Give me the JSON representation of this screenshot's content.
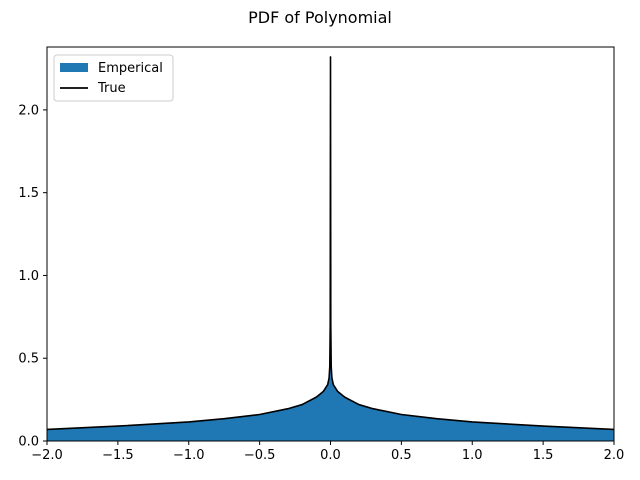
{
  "chart_data": {
    "type": "area",
    "title": "PDF of Polynomial",
    "xlabel": "",
    "ylabel": "",
    "xlim": [
      -2.0,
      2.0
    ],
    "ylim": [
      0.0,
      2.38
    ],
    "x_ticks": [
      "−2.0",
      "−1.5",
      "−1.0",
      "−0.5",
      "0.0",
      "0.5",
      "1.0",
      "1.5",
      "2.0"
    ],
    "x_tick_values": [
      -2.0,
      -1.5,
      -1.0,
      -0.5,
      0.0,
      0.5,
      1.0,
      1.5,
      2.0
    ],
    "y_ticks": [
      "0.0",
      "0.5",
      "1.0",
      "1.5",
      "2.0"
    ],
    "y_tick_values": [
      0.0,
      0.5,
      1.0,
      1.5,
      2.0
    ],
    "grid": false,
    "legend": {
      "placement": "top-left",
      "entries": [
        "Emperical",
        "True"
      ]
    },
    "series": [
      {
        "name": "Emperical",
        "kind": "filled-area",
        "color": "#1f77b4",
        "x": [
          -2.0,
          -1.5,
          -1.0,
          -0.75,
          -0.5,
          -0.3,
          -0.2,
          -0.1,
          -0.05,
          -0.02,
          -0.01,
          0.0,
          0.01,
          0.02,
          0.05,
          0.1,
          0.2,
          0.3,
          0.5,
          0.75,
          1.0,
          1.5,
          2.0
        ],
        "y": [
          0.07,
          0.09,
          0.115,
          0.135,
          0.16,
          0.195,
          0.22,
          0.265,
          0.3,
          0.34,
          0.36,
          0.52,
          0.36,
          0.34,
          0.3,
          0.265,
          0.22,
          0.195,
          0.16,
          0.135,
          0.115,
          0.09,
          0.07
        ]
      },
      {
        "name": "True",
        "kind": "line",
        "color": "#000000",
        "x": [
          -2.0,
          -1.5,
          -1.0,
          -0.75,
          -0.5,
          -0.3,
          -0.2,
          -0.1,
          -0.05,
          -0.02,
          -0.01,
          -0.005,
          -0.002,
          0.0,
          0.002,
          0.005,
          0.01,
          0.02,
          0.05,
          0.1,
          0.2,
          0.3,
          0.5,
          0.75,
          1.0,
          1.5,
          2.0
        ],
        "y": [
          0.07,
          0.09,
          0.115,
          0.135,
          0.16,
          0.195,
          0.22,
          0.265,
          0.3,
          0.34,
          0.38,
          0.45,
          0.7,
          2.32,
          0.7,
          0.45,
          0.38,
          0.34,
          0.3,
          0.265,
          0.22,
          0.195,
          0.16,
          0.135,
          0.115,
          0.09,
          0.07
        ]
      }
    ]
  }
}
